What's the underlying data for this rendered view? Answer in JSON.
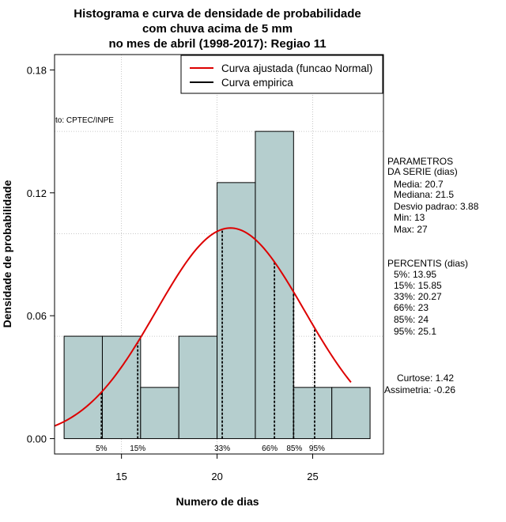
{
  "chart_data": {
    "type": "bar",
    "title_lines": [
      "Histograma e curva de densidade de probabilidade",
      "com chuva acima de 5 mm",
      "no mes de abril (1998-2017): Regiao 11"
    ],
    "xlabel": "Numero de dias",
    "ylabel": "Densidade de probabilidade",
    "xlim": [
      11.5,
      28.7
    ],
    "ylim": [
      -0.0075,
      0.1875
    ],
    "x_ticks": [
      15,
      20,
      25
    ],
    "y_ticks": [
      0.0,
      0.06,
      0.12,
      0.18
    ],
    "y_tick_labels": [
      "0.00",
      "0.06",
      "0.12",
      "0.18"
    ],
    "grid": true,
    "grid_x": [
      15,
      20,
      25
    ],
    "grid_y": [
      0.05,
      0.1,
      0.15
    ],
    "bar_color": "#b5cece",
    "bins": [
      {
        "from": 12,
        "to": 14,
        "density": 0.05
      },
      {
        "from": 14,
        "to": 16,
        "density": 0.05
      },
      {
        "from": 16,
        "to": 18,
        "density": 0.025
      },
      {
        "from": 18,
        "to": 20,
        "density": 0.05
      },
      {
        "from": 20,
        "to": 22,
        "density": 0.125
      },
      {
        "from": 22,
        "to": 24,
        "density": 0.15
      },
      {
        "from": 24,
        "to": 26,
        "density": 0.025
      },
      {
        "from": 26,
        "to": 28,
        "density": 0.025
      }
    ],
    "series": [
      {
        "name": "Curva ajustada (funcao Normal)",
        "color": "#dd0000",
        "kind": "normal",
        "mean": 20.7,
        "sd": 3.88,
        "x_from": 11.5,
        "x_to": 27.0
      },
      {
        "name": "Curva empirica",
        "color": "#000000",
        "kind": "none"
      }
    ],
    "legend_position": "top-right",
    "percentile_lines": [
      {
        "label": "5%",
        "x": 13.95
      },
      {
        "label": "15%",
        "x": 15.85
      },
      {
        "label": "33%",
        "x": 20.27
      },
      {
        "label": "66%",
        "x": 23
      },
      {
        "label": "85%",
        "x": 24
      },
      {
        "label": "95%",
        "x": 25.1
      }
    ],
    "source_note": "to: CPTEC/INPE"
  },
  "side_panel": {
    "params_header": [
      "PARAMETROS",
      "DA SERIE (dias)"
    ],
    "params": [
      "Media: 20.7",
      "Mediana: 21.5",
      "Desvio padrao: 3.88",
      "Min: 13",
      "Max: 27"
    ],
    "percentis_header": "PERCENTIS (dias)",
    "percentis": [
      "5%: 13.95",
      "15%: 15.85",
      "33%: 20.27",
      "66%: 23",
      "85%: 24",
      "95%: 25.1"
    ],
    "curtose": "Curtose: 1.42",
    "assimetria": "Assimetria: -0.26"
  }
}
